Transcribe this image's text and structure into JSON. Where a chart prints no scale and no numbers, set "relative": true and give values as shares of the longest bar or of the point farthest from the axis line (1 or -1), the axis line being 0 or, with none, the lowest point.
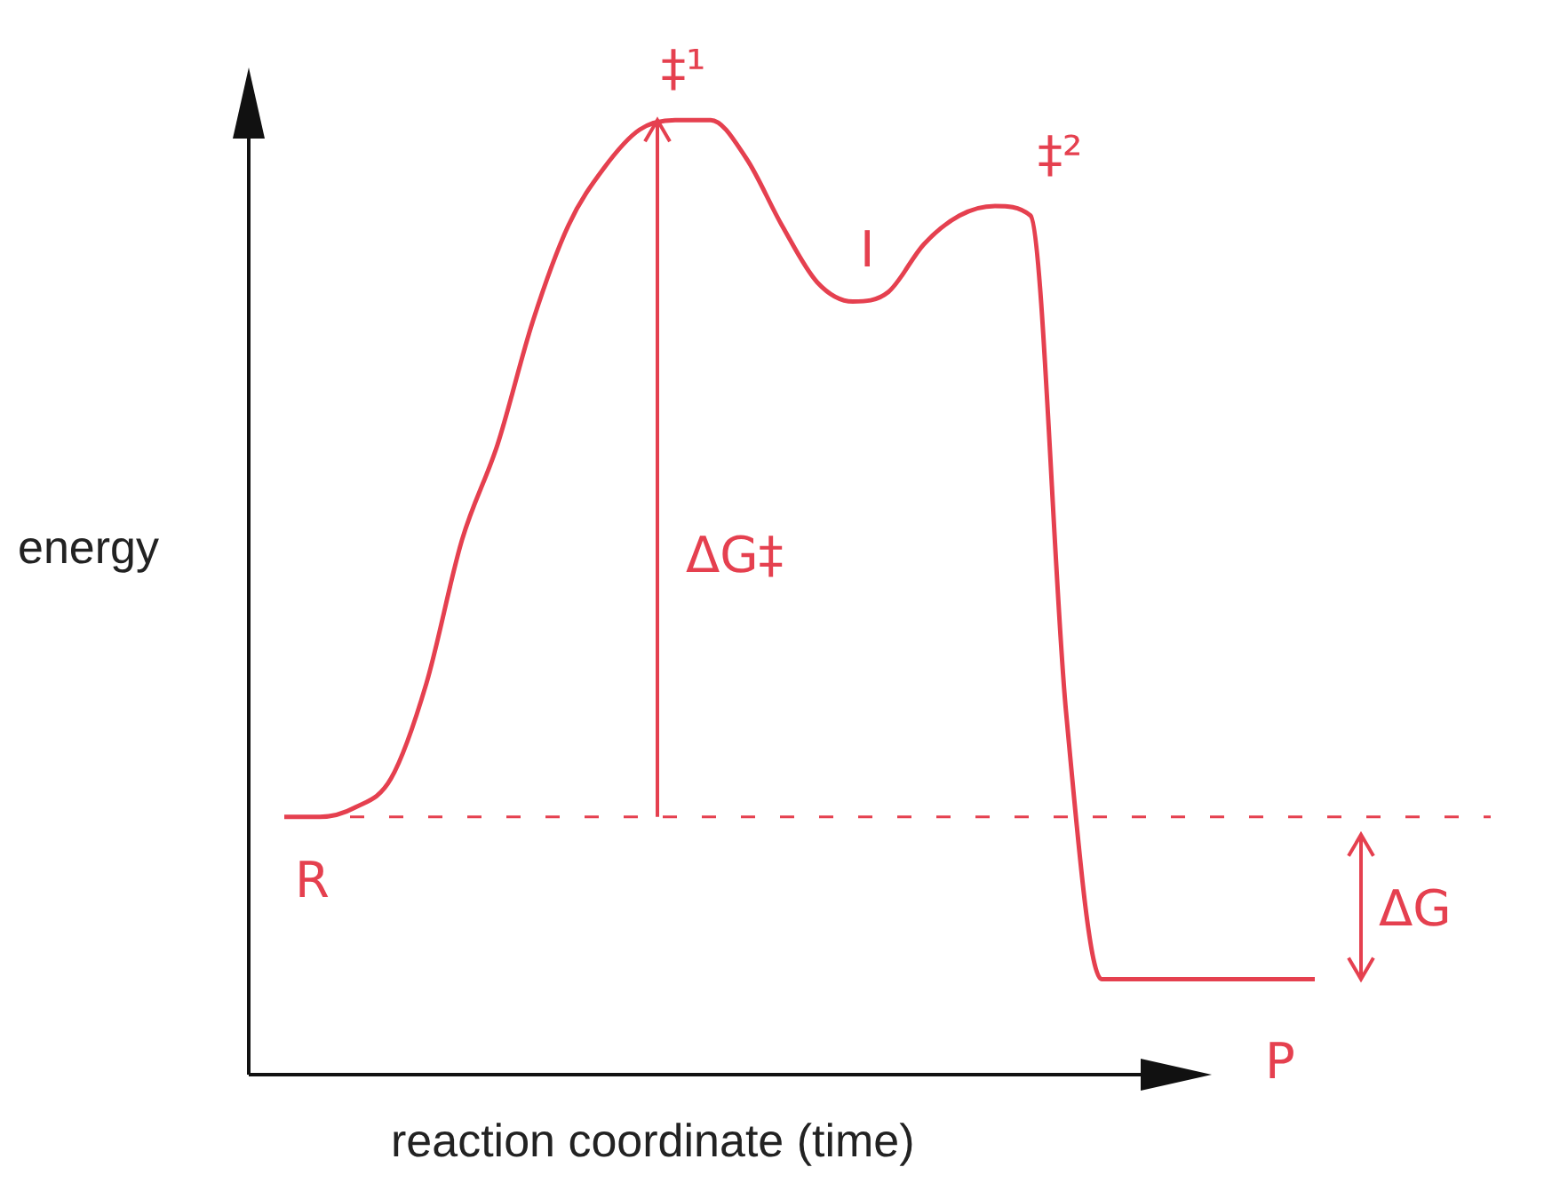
{
  "chart_data": {
    "type": "line",
    "relative": true,
    "xlabel": "reaction coordinate (time)",
    "ylabel": "energy",
    "categories": [
      null,
      null,
      null,
      null,
      null,
      null,
      null,
      null,
      null,
      null,
      null,
      null,
      null,
      null,
      null,
      null,
      null,
      null,
      null,
      null,
      null,
      null,
      null,
      null,
      null,
      null,
      null,
      null,
      null,
      null
    ],
    "series": [
      {
        "color": "#e5404f",
        "values": [
          0.27,
          0.27,
          0.28,
          0.31,
          0.41,
          0.56,
          0.66,
          0.79,
          0.89,
          0.95,
          0.99,
          1,
          1,
          0.96,
          0.89,
          0.83,
          0.81,
          0.82,
          0.87,
          0.9,
          0.91,
          0.9,
          0.38,
          0.1,
          0.1,
          0.1,
          0.1,
          0.1,
          0.1,
          0.1
        ]
      }
    ],
    "ref_lines": [
      {
        "axis": "y",
        "value": 0.27,
        "color": "#e5404f",
        "line_style": "dashed"
      }
    ],
    "annotations": [
      "‡¹",
      "I",
      "‡²",
      "R",
      "P",
      "ΔG‡",
      "ΔG"
    ],
    "marker": "none",
    "line_style": "solid",
    "grid": false,
    "legend": false
  }
}
